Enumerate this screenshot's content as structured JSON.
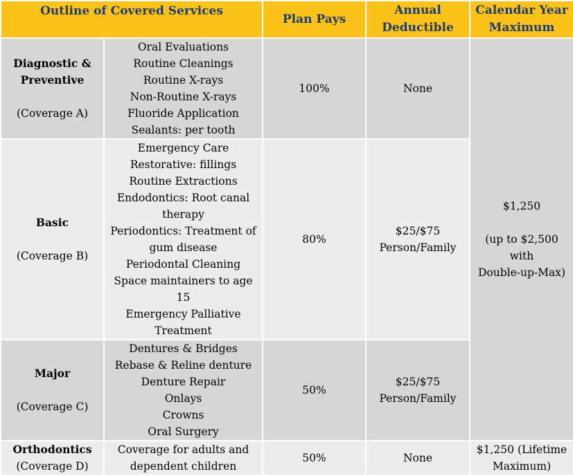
{
  "headers": {
    "services": "Outline of Covered Services",
    "plan_pays": "Plan Pays",
    "deductible_1": "Annual",
    "deductible_2": "Deductible",
    "maximum_1": "Calendar Year",
    "maximum_2": "Maximum"
  },
  "rows": [
    {
      "name_1": "Diagnostic &",
      "name_2": "Preventive",
      "coverage": "(Coverage A)",
      "services": [
        "Oral Evaluations",
        "Routine Cleanings",
        "Routine X-rays",
        "Non-Routine X-rays",
        "Fluoride Application",
        "Sealants: per tooth"
      ],
      "plan_pays": "100%",
      "deductible_1": "None",
      "deductible_2": ""
    },
    {
      "name_1": "Basic",
      "name_2": "",
      "coverage": "(Coverage B)",
      "services": [
        "Emergency Care",
        "Restorative: fillings",
        "Routine Extractions",
        "Endodontics: Root canal",
        "therapy",
        "Periodontics: Treatment of",
        "gum disease",
        "Periodontal Cleaning",
        "Space maintainers to age",
        "15",
        "Emergency Palliative",
        "Treatment"
      ],
      "plan_pays": "80%",
      "deductible_1": "$25/$75",
      "deductible_2": "Person/Family"
    },
    {
      "name_1": "Major",
      "name_2": "",
      "coverage": "(Coverage C)",
      "services": [
        "Dentures & Bridges",
        "Rebase & Reline denture",
        "Denture Repair",
        "Onlays",
        "Crowns",
        "Oral Surgery"
      ],
      "plan_pays": "50%",
      "deductible_1": "$25/$75",
      "deductible_2": "Person/Family"
    },
    {
      "name_1": "Orthodontics",
      "name_2": "",
      "coverage": "(Coverage D)",
      "services": [
        "Coverage for adults and",
        "dependent children"
      ],
      "plan_pays": "50%",
      "deductible_1": "None",
      "deductible_2": "",
      "maximum_1": "$1,250 (Lifetime",
      "maximum_2": "Maximum)"
    }
  ],
  "calendar_max": {
    "line_1": "$1,250",
    "line_2": "(up to $2,500",
    "line_3": "with",
    "line_4": "Double-up-Max)"
  },
  "colors": {
    "header_bg": "#fbc21a",
    "header_text": "#1f3a6b",
    "row_dark": "#d6d6d6",
    "row_light": "#ececec"
  }
}
